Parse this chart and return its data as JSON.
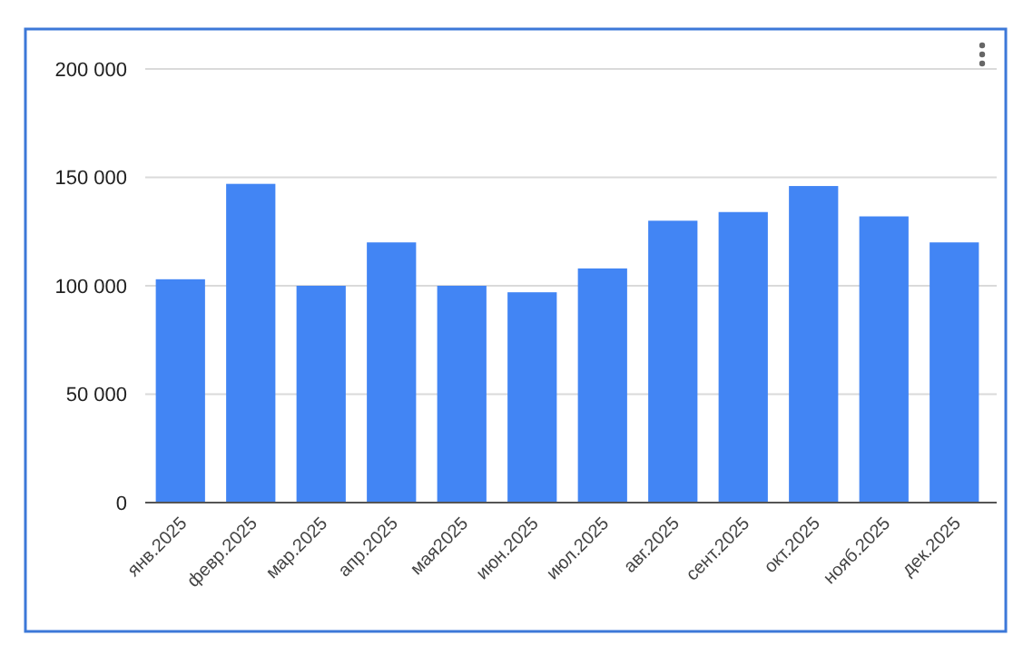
{
  "chart_data": {
    "type": "bar",
    "categories": [
      "янв.2025",
      "февр.2025",
      "мар.2025",
      "апр.2025",
      "мая2025",
      "июн.2025",
      "июл.2025",
      "авг.2025",
      "сент.2025",
      "окт.2025",
      "нояб.2025",
      "дек.2025"
    ],
    "values": [
      103000,
      147000,
      100000,
      120000,
      100000,
      97000,
      108000,
      130000,
      134000,
      146000,
      132000,
      120000
    ],
    "color": "#4285f4",
    "ylim": [
      0,
      200000
    ],
    "yticks": [
      {
        "value": 0,
        "label": "0"
      },
      {
        "value": 50000,
        "label": "50 000"
      },
      {
        "value": 100000,
        "label": "100 000"
      },
      {
        "value": 150000,
        "label": "150 000"
      },
      {
        "value": 200000,
        "label": "200 000"
      }
    ],
    "grid": true
  }
}
